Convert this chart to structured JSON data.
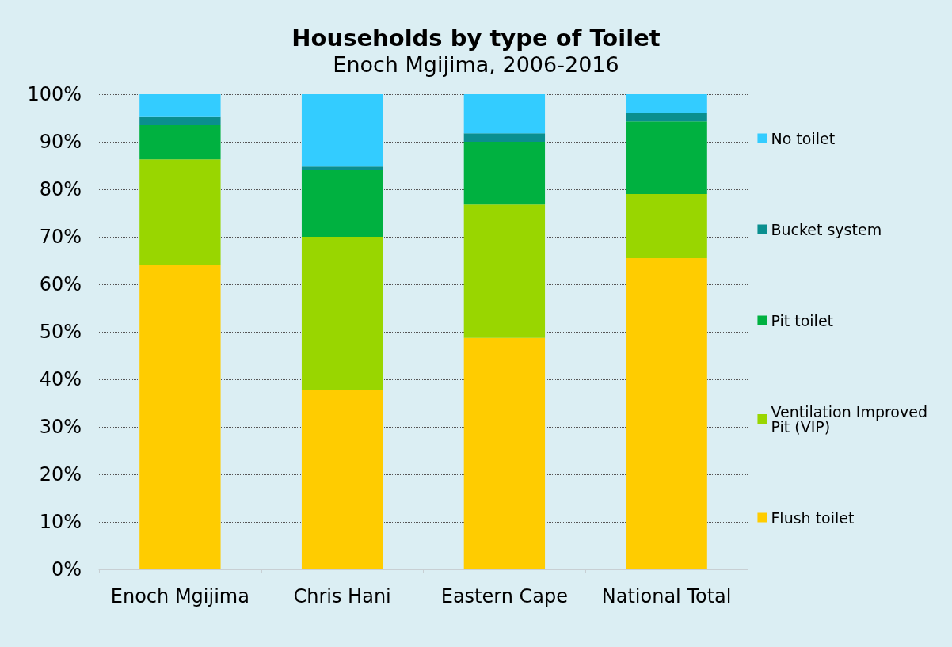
{
  "chart_data": {
    "type": "bar",
    "title": "Households by type of Toilet",
    "subtitle": "Enoch Mgijima, 2006-2016",
    "categories": [
      "Enoch Mgijima",
      "Chris Hani",
      "Eastern Cape",
      "National Total"
    ],
    "stacked": true,
    "series": [
      {
        "name": "Flush toilet",
        "color": "#ffcc00",
        "values": [
          64.0,
          37.7,
          48.7,
          65.5
        ]
      },
      {
        "name": "Ventilation Improved Pit (VIP)",
        "color": "#99d600",
        "values": [
          22.3,
          32.3,
          28.1,
          13.5
        ]
      },
      {
        "name": "Pit toilet",
        "color": "#00b140",
        "values": [
          7.2,
          14.0,
          13.2,
          15.3
        ]
      },
      {
        "name": "Bucket system",
        "color": "#0a8f8f",
        "values": [
          1.7,
          0.8,
          1.8,
          1.7
        ]
      },
      {
        "name": "No toilet",
        "color": "#33ccff",
        "values": [
          4.8,
          15.2,
          8.2,
          4.0
        ]
      }
    ],
    "ylim": [
      0,
      100
    ],
    "yticks": [
      {
        "value": 0,
        "label": "0%"
      },
      {
        "value": 10,
        "label": "10%"
      },
      {
        "value": 20,
        "label": "20%"
      },
      {
        "value": 30,
        "label": "30%"
      },
      {
        "value": 40,
        "label": "40%"
      },
      {
        "value": 50,
        "label": "50%"
      },
      {
        "value": 60,
        "label": "60%"
      },
      {
        "value": 70,
        "label": "70%"
      },
      {
        "value": 80,
        "label": "80%"
      },
      {
        "value": 90,
        "label": "90%"
      },
      {
        "value": 100,
        "label": "100%"
      }
    ],
    "grid": "y",
    "legend": "right"
  }
}
